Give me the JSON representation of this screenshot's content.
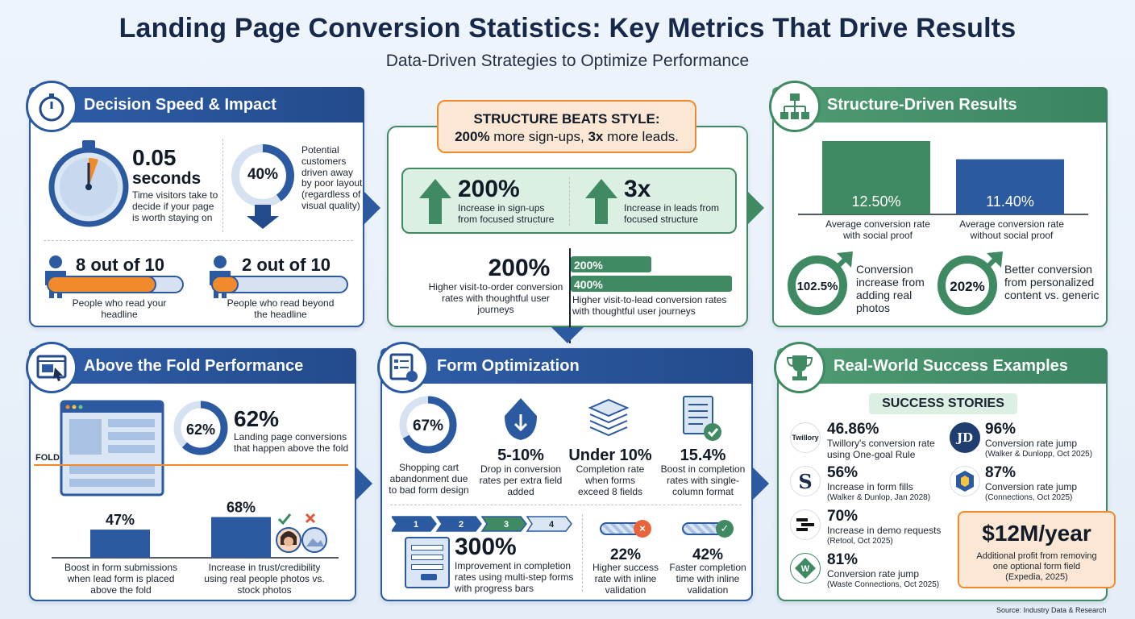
{
  "title": "Landing Page Conversion Statistics: Key Metrics That Drive Results",
  "subtitle": "Data-Driven Strategies to Optimize Performance",
  "colors": {
    "blue": "#2b5aa0",
    "green": "#3f8a62",
    "orange": "#f08a2c",
    "callout": "#fbe7d4"
  },
  "decision": {
    "header": "Decision Speed & Impact",
    "icon": "stopwatch-icon",
    "seconds_value": "0.05",
    "seconds_unit": "seconds",
    "seconds_desc": "Time visitors take to decide if your page is worth staying on",
    "ring_value": "40%",
    "ring_fraction": 0.4,
    "ring_desc": "Potential customers driven away by poor layout (regardless of visual quality)",
    "read_value": "8 out of 10",
    "read_fraction": 0.8,
    "read_desc": "People who read your headline",
    "beyond_value": "2 out of 10",
    "beyond_fraction": 0.2,
    "beyond_desc": "People who read beyond the headline"
  },
  "structure": {
    "callout_line1": "STRUCTURE BEATS STYLE:",
    "callout_line2_a": "200%",
    "callout_line2_b": " more sign-ups, ",
    "callout_line2_c": "3x",
    "callout_line2_d": " more leads.",
    "signups_value": "200%",
    "signups_desc": "Increase in sign-ups from focused structure",
    "leads_value": "3x",
    "leads_desc": "Increase in leads from focused structure",
    "order_value": "200%",
    "order_desc": "Higher visit-to-order conversion rates with thoughtful user journeys",
    "bar1_label": "200%",
    "bar2_label": "400%",
    "lead_desc": "Higher visit-to-lead conversion rates with thoughtful user journeys"
  },
  "results": {
    "header": "Structure-Driven Results",
    "icon": "sitemap-icon",
    "chart_data": {
      "type": "bar",
      "categories": [
        "Average conversion rate with social proof",
        "Average conversion rate without social proof"
      ],
      "values": [
        12.5,
        11.4
      ],
      "value_labels": [
        "12.50%",
        "11.40%"
      ]
    },
    "photos_value": "102.5%",
    "photos_desc": "Conversion increase from adding real photos",
    "personal_value": "202%",
    "personal_desc": "Better conversion from personalized content vs. generic"
  },
  "fold": {
    "header": "Above the Fold Performance",
    "icon": "browser-cursor-icon",
    "fold_label": "FOLD",
    "ring_value": "62%",
    "ring_fraction": 0.62,
    "big_value": "62%",
    "big_desc": "Landing page conversions that happen above the fold",
    "chart_data": {
      "type": "bar",
      "categories": [
        "Boost in form submissions when lead form is placed above the fold",
        "Increase in trust/credibility using real people photos vs. stock photos"
      ],
      "values": [
        47,
        68
      ],
      "value_labels": [
        "47%",
        "68%"
      ]
    }
  },
  "form": {
    "header": "Form Optimization",
    "icon": "form-icon",
    "cart_value": "67%",
    "cart_fraction": 0.67,
    "cart_desc": "Shopping cart abandonment due to bad form design",
    "drop_value": "5-10%",
    "drop_desc": "Drop in conversion rates per extra field added",
    "completion_value": "Under 10%",
    "completion_desc": "Completion rate when forms exceed 8 fields",
    "single_value": "15.4%",
    "single_desc": "Boost in completion rates with single-column format",
    "steps": [
      "1",
      "2",
      "3",
      "4"
    ],
    "multistep_value": "300%",
    "multistep_desc": "Improvement in completion rates using multi-step forms with progress bars",
    "inline_value": "22%",
    "inline_desc": "Higher success rate with inline validation",
    "faster_value": "42%",
    "faster_desc": "Faster completion time with inline validation"
  },
  "success": {
    "header": "Real-World Success Examples",
    "icon": "trophy-icon",
    "badge": "SUCCESS STORIES",
    "stories": [
      {
        "logo": "Twillory",
        "value": "46.86%",
        "desc": "Twillory's conversion rate using One-goal Rule"
      },
      {
        "logo": "S",
        "value": "56%",
        "desc": "Increase in form fills",
        "source": "(Walker & Dunlop, Jan 2028)"
      },
      {
        "logo": "R",
        "value": "70%",
        "desc": "Increase in demo requests",
        "source": "(Retool, Oct 2025)"
      },
      {
        "logo": "W",
        "value": "81%",
        "desc": "Conversion rate jump",
        "source": "(Waste Connections, Oct 2025)"
      },
      {
        "logo": "JD",
        "value": "96%",
        "desc": "Conversion rate jump",
        "source": "(Walker & Dunlopp, Oct 2025)"
      },
      {
        "logo": "C",
        "value": "87%",
        "desc": "Conversion rate jump",
        "source": "(Connections, Oct 2025)"
      }
    ],
    "profit_value": "$12M/year",
    "profit_desc": "Additional profit from removing one optional form field (Expedia, 2025)"
  },
  "source": "Source: Industry Data & Research"
}
